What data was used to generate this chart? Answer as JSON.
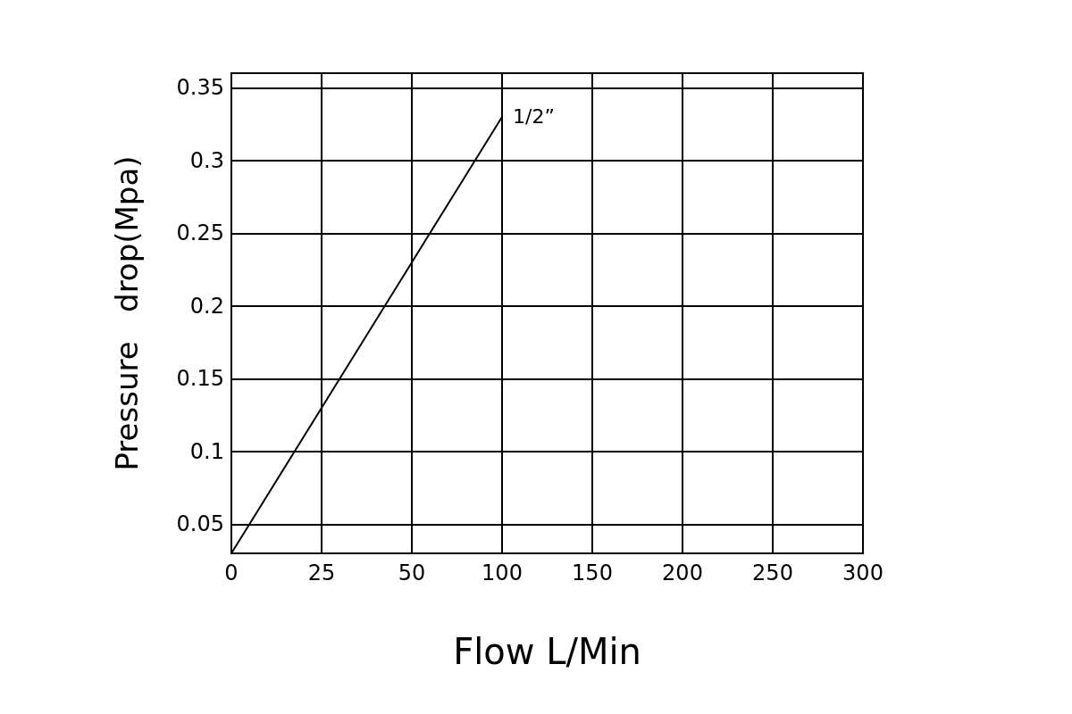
{
  "chart_data": {
    "type": "line",
    "xlabel": "Flow L/Min",
    "ylabel": "Pressure   drop(Mpa)",
    "categories": [
      "0",
      "25",
      "50",
      "100",
      "150",
      "200",
      "250",
      "300"
    ],
    "series": [
      {
        "name": "1/2”",
        "color": "#000000",
        "values": [
          0.03,
          0.13,
          0.23,
          0.33,
          null,
          null,
          null,
          null
        ]
      }
    ],
    "ylim": [
      0.03,
      0.36
    ],
    "yticks": [
      0.05,
      0.1,
      0.15,
      0.2,
      0.25,
      0.3,
      0.35
    ],
    "grid": true,
    "marker": "none",
    "line_style": "solid",
    "legend": false
  }
}
